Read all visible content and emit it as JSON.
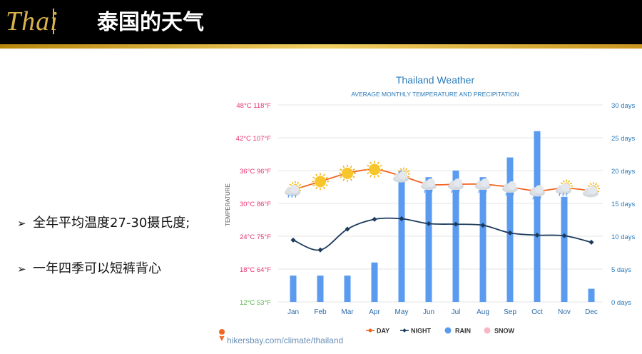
{
  "header": {
    "logo_text": "Thai",
    "title": "泰国的天气"
  },
  "bullets": [
    {
      "marker": "➢",
      "text": "全年平均温度27-30摄氏度;"
    },
    {
      "marker": "➢",
      "text": "一年四季可以短裤背心"
    }
  ],
  "colors": {
    "day": "#f26522",
    "night": "#1b3a5c",
    "rain": "#5a9bf0",
    "snow": "#f5b8c4",
    "title": "#2a7ab8",
    "gold": "#d9b24a"
  },
  "chart_data": {
    "type": "bar+line",
    "title": "Thailand Weather",
    "subtitle": "AVERAGE MONTHLY TEMPERATURE AND PRECIPITATION",
    "ylabel": "TEMPERATURE",
    "categories": [
      "Jan",
      "Feb",
      "Mar",
      "Apr",
      "May",
      "Jun",
      "Jul",
      "Aug",
      "Sep",
      "Oct",
      "Nov",
      "Dec"
    ],
    "y_left": {
      "ylim": [
        12,
        48
      ],
      "ticks": [
        {
          "value": 48,
          "label": "48°C 118°F",
          "color": "#e8336e"
        },
        {
          "value": 42,
          "label": "42°C 107°F",
          "color": "#e8336e"
        },
        {
          "value": 36,
          "label": "36°C 96°F",
          "color": "#e8336e"
        },
        {
          "value": 30,
          "label": "30°C 86°F",
          "color": "#e8336e"
        },
        {
          "value": 24,
          "label": "24°C 75°F",
          "color": "#e8336e"
        },
        {
          "value": 18,
          "label": "18°C 64°F",
          "color": "#e8336e"
        },
        {
          "value": 12,
          "label": "12°C 53°F",
          "color": "#56b848"
        }
      ]
    },
    "y_right": {
      "ylim": [
        0,
        30
      ],
      "ticks": [
        {
          "value": 30,
          "label": "30 days"
        },
        {
          "value": 25,
          "label": "25 days"
        },
        {
          "value": 20,
          "label": "20 days"
        },
        {
          "value": 15,
          "label": "15 days"
        },
        {
          "value": 10,
          "label": "10 days"
        },
        {
          "value": 5,
          "label": "5 days"
        },
        {
          "value": 0,
          "label": "0 days"
        }
      ]
    },
    "series": [
      {
        "name": "DAY",
        "kind": "line",
        "axis": "left",
        "values": [
          32.5,
          34,
          35.5,
          36.2,
          35,
          33.5,
          33.5,
          33.5,
          33,
          32.3,
          32.8,
          32.3
        ]
      },
      {
        "name": "NIGHT",
        "kind": "line",
        "axis": "left",
        "values": [
          23.3,
          21.5,
          25.3,
          27.1,
          27.2,
          26.3,
          26.2,
          26,
          24.6,
          24.2,
          24.1,
          22.9
        ]
      },
      {
        "name": "RAIN",
        "kind": "bar",
        "axis": "right",
        "values": [
          4,
          4,
          4,
          6,
          20,
          19,
          20,
          19,
          22,
          26,
          16,
          2
        ]
      },
      {
        "name": "SNOW",
        "kind": "bar",
        "axis": "right",
        "values": [
          0,
          0,
          0,
          0,
          0,
          0,
          0,
          0,
          0,
          0,
          0,
          0
        ]
      }
    ],
    "weather_icons": [
      "sun-cloud-rain-icon",
      "sun-icon",
      "sun-icon",
      "sun-icon",
      "sun-cloud-icon",
      "cloud-rain-icon",
      "cloud-rain-icon",
      "cloud-rain-icon",
      "cloud-rain-icon",
      "cloud-rain-icon",
      "sun-cloud-rain-icon",
      "sun-cloud-icon"
    ],
    "legend": [
      "DAY",
      "NIGHT",
      "RAIN",
      "SNOW"
    ],
    "legend_position": "bottom",
    "grid": true,
    "source": "hikersbay.com/climate/thailand"
  }
}
